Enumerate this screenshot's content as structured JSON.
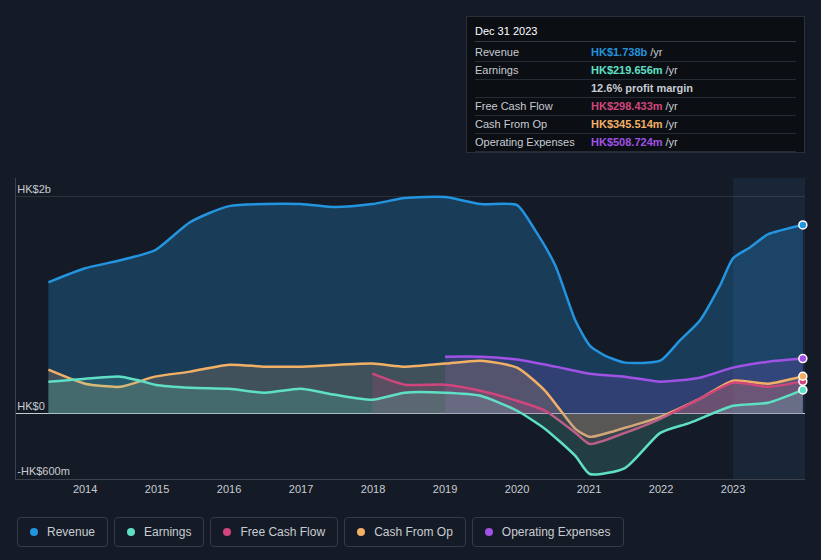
{
  "chart_data": {
    "type": "area",
    "xlim": [
      2013.04,
      2024.0
    ],
    "xticks": [
      2014,
      2015,
      2016,
      2017,
      2018,
      2019,
      2020,
      2021,
      2022,
      2023
    ],
    "ylim": [
      -600,
      2170
    ],
    "yticks": [
      {
        "value": 2000,
        "label": "HK$2b"
      },
      {
        "value": 0,
        "label": "HK$0"
      },
      {
        "value": -600,
        "label": "-HK$600m"
      }
    ],
    "grid": true,
    "legend": "bottom",
    "marker": "end",
    "series": [
      {
        "name": "Revenue",
        "color": "#2394df",
        "x": [
          2013.49,
          2014,
          2014.49,
          2014.97,
          2015.46,
          2016,
          2016.99,
          2017.47,
          2017.99,
          2018.44,
          2019,
          2019.49,
          2020,
          2020.25,
          2020.53,
          2020.81,
          2021.01,
          2021.22,
          2021.5,
          2021.99,
          2022.26,
          2022.54,
          2022.82,
          2023,
          2023.24,
          2023.49,
          2023.97
        ],
        "values": [
          1210,
          1339,
          1413,
          1505,
          1764,
          1911,
          1930,
          1902,
          1930,
          1985,
          1995,
          1930,
          1921,
          1690,
          1367,
          859,
          628,
          536,
          471,
          489,
          674,
          859,
          1182,
          1431,
          1533,
          1653,
          1738
        ]
      },
      {
        "name": "Earnings",
        "color": "#5fe0c5",
        "x": [
          2013.49,
          2014,
          2014.49,
          2014.76,
          2014.97,
          2015.46,
          2016,
          2016.5,
          2016.99,
          2017.47,
          2017.99,
          2018.44,
          2019,
          2019.49,
          2020,
          2020.39,
          2020.81,
          2021.01,
          2021.5,
          2021.99,
          2022.4,
          2023,
          2023.49,
          2023.97
        ],
        "values": [
          295,
          323,
          342,
          305,
          268,
          240,
          231,
          194,
          231,
          175,
          129,
          194,
          194,
          166,
          28,
          -139,
          -388,
          -554,
          -499,
          -175,
          -83,
          74,
          102,
          219.656
        ]
      },
      {
        "name": "Free Cash Flow",
        "color": "#d0467c",
        "x": [
          2017.99,
          2018.44,
          2019,
          2019.49,
          2020,
          2020.39,
          2020.81,
          2021.01,
          2021.5,
          2021.99,
          2022.54,
          2023,
          2023.49,
          2023.97
        ],
        "values": [
          369,
          268,
          268,
          212,
          120,
          28,
          -175,
          -277,
          -175,
          -46,
          139,
          286,
          249,
          298.433
        ]
      },
      {
        "name": "Cash From Op",
        "color": "#f2b066",
        "x": [
          2013.49,
          2014,
          2014.49,
          2014.97,
          2015.46,
          2016,
          2016.5,
          2016.99,
          2017.99,
          2018.44,
          2019,
          2019.49,
          2020,
          2020.39,
          2020.81,
          2021.01,
          2021.5,
          2021.99,
          2022.54,
          2023,
          2023.49,
          2023.97
        ],
        "values": [
          406,
          277,
          249,
          342,
          388,
          452,
          434,
          434,
          462,
          434,
          462,
          489,
          425,
          212,
          -139,
          -212,
          -129,
          -28,
          139,
          305,
          277,
          345.514
        ]
      },
      {
        "name": "Operating Expenses",
        "color": "#a052e6",
        "x": [
          2019,
          2019.49,
          2020,
          2020.53,
          2021.01,
          2021.5,
          2021.99,
          2022.54,
          2023,
          2023.49,
          2023.97
        ],
        "values": [
          526,
          526,
          499,
          434,
          369,
          342,
          295,
          332,
          425,
          480,
          508.724
        ]
      }
    ],
    "tooltip": {
      "title": "Dec 31 2023",
      "rows": [
        {
          "label": "Revenue",
          "value_label": "HK$1.738b",
          "unit": "/yr"
        },
        {
          "label": "Earnings",
          "value_label": "HK$219.656m",
          "unit": "/yr"
        },
        {
          "note": "12.6% profit margin"
        },
        {
          "label": "Free Cash Flow",
          "value_label": "HK$298.433m",
          "unit": "/yr"
        },
        {
          "label": "Cash From Op",
          "value_label": "HK$345.514m",
          "unit": "/yr"
        },
        {
          "label": "Operating Expenses",
          "value_label": "HK$508.724m",
          "unit": "/yr"
        }
      ]
    }
  }
}
